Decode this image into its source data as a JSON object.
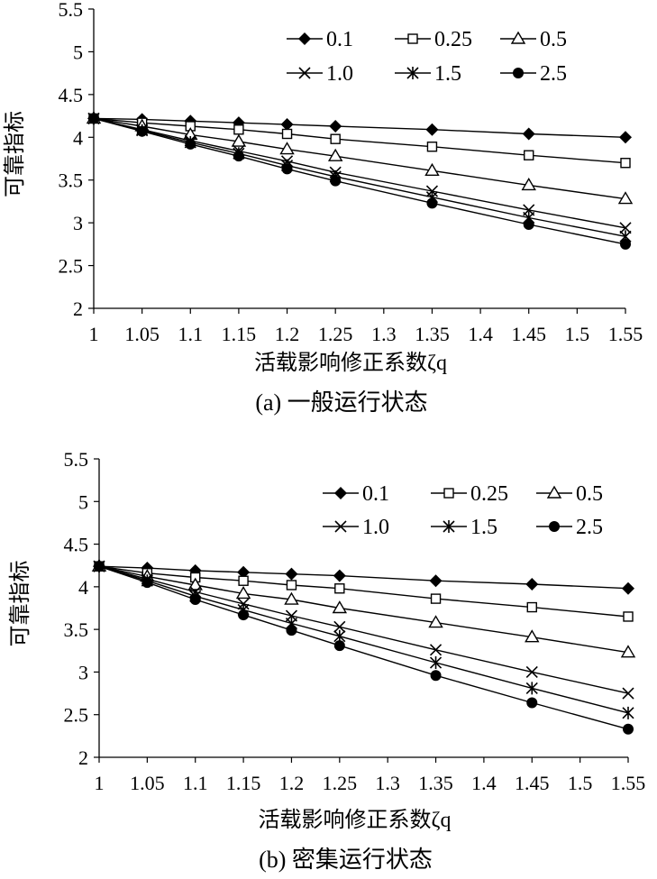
{
  "chart_data": [
    {
      "type": "line",
      "caption": "(a) 一般运行状态",
      "xlabel": "活载影响修正系数ζq",
      "ylabel": "可靠指标",
      "ylim": [
        2,
        5.5
      ],
      "xlim": [
        1,
        1.55
      ],
      "yticks": [
        "2",
        "2.5",
        "3",
        "3.5",
        "4",
        "4.5",
        "5",
        "5.5"
      ],
      "xticks": [
        "1",
        "1.05",
        "1.1",
        "1.15",
        "1.2",
        "1.25",
        "1.3",
        "1.35",
        "1.4",
        "1.45",
        "1.5",
        "1.55"
      ],
      "legend": "top-right",
      "x": [
        1,
        1.05,
        1.1,
        1.15,
        1.2,
        1.25,
        1.35,
        1.45,
        1.55
      ],
      "series": [
        {
          "name": "0.1",
          "marker": "diamond",
          "values": [
            4.22,
            4.21,
            4.19,
            4.17,
            4.15,
            4.13,
            4.09,
            4.04,
            4.0
          ]
        },
        {
          "name": "0.25",
          "marker": "square-open",
          "values": [
            4.22,
            4.17,
            4.13,
            4.09,
            4.04,
            3.98,
            3.89,
            3.79,
            3.7
          ]
        },
        {
          "name": "0.5",
          "marker": "triangle-open",
          "values": [
            4.22,
            4.13,
            4.03,
            3.95,
            3.86,
            3.78,
            3.61,
            3.44,
            3.28
          ]
        },
        {
          "name": "1.0",
          "marker": "x",
          "values": [
            4.22,
            4.09,
            3.96,
            3.84,
            3.72,
            3.59,
            3.37,
            3.15,
            2.94
          ]
        },
        {
          "name": "1.5",
          "marker": "asterisk",
          "values": [
            4.22,
            4.08,
            3.94,
            3.81,
            3.67,
            3.54,
            3.3,
            3.06,
            2.84
          ]
        },
        {
          "name": "2.5",
          "marker": "circle",
          "values": [
            4.22,
            4.07,
            3.92,
            3.78,
            3.63,
            3.49,
            3.23,
            2.98,
            2.75
          ]
        }
      ]
    },
    {
      "type": "line",
      "caption": "(b) 密集运行状态",
      "xlabel": "活载影响修正系数ζq",
      "ylabel": "可靠指标",
      "ylim": [
        2,
        5.5
      ],
      "xlim": [
        1,
        1.55
      ],
      "yticks": [
        "2",
        "2.5",
        "3",
        "3.5",
        "4",
        "4.5",
        "5",
        "5.5"
      ],
      "xticks": [
        "1",
        "1.05",
        "1.1",
        "1.15",
        "1.2",
        "1.25",
        "1.3",
        "1.35",
        "1.4",
        "1.45",
        "1.5",
        "1.55"
      ],
      "legend": "top-right",
      "x": [
        1,
        1.05,
        1.1,
        1.15,
        1.2,
        1.25,
        1.35,
        1.45,
        1.55
      ],
      "series": [
        {
          "name": "0.1",
          "marker": "diamond",
          "values": [
            4.24,
            4.22,
            4.19,
            4.17,
            4.15,
            4.13,
            4.07,
            4.03,
            3.98
          ]
        },
        {
          "name": "0.25",
          "marker": "square-open",
          "values": [
            4.24,
            4.16,
            4.11,
            4.07,
            4.02,
            3.98,
            3.86,
            3.76,
            3.65
          ]
        },
        {
          "name": "0.5",
          "marker": "triangle-open",
          "values": [
            4.24,
            4.12,
            4.02,
            3.92,
            3.85,
            3.75,
            3.58,
            3.41,
            3.23
          ]
        },
        {
          "name": "1.0",
          "marker": "x",
          "values": [
            4.24,
            4.09,
            3.94,
            3.8,
            3.66,
            3.53,
            3.26,
            3.0,
            2.75
          ]
        },
        {
          "name": "1.5",
          "marker": "asterisk",
          "values": [
            4.24,
            4.07,
            3.89,
            3.73,
            3.57,
            3.42,
            3.11,
            2.81,
            2.52
          ]
        },
        {
          "name": "2.5",
          "marker": "circle",
          "values": [
            4.24,
            4.05,
            3.85,
            3.67,
            3.49,
            3.31,
            2.96,
            2.64,
            2.33
          ]
        }
      ]
    }
  ]
}
